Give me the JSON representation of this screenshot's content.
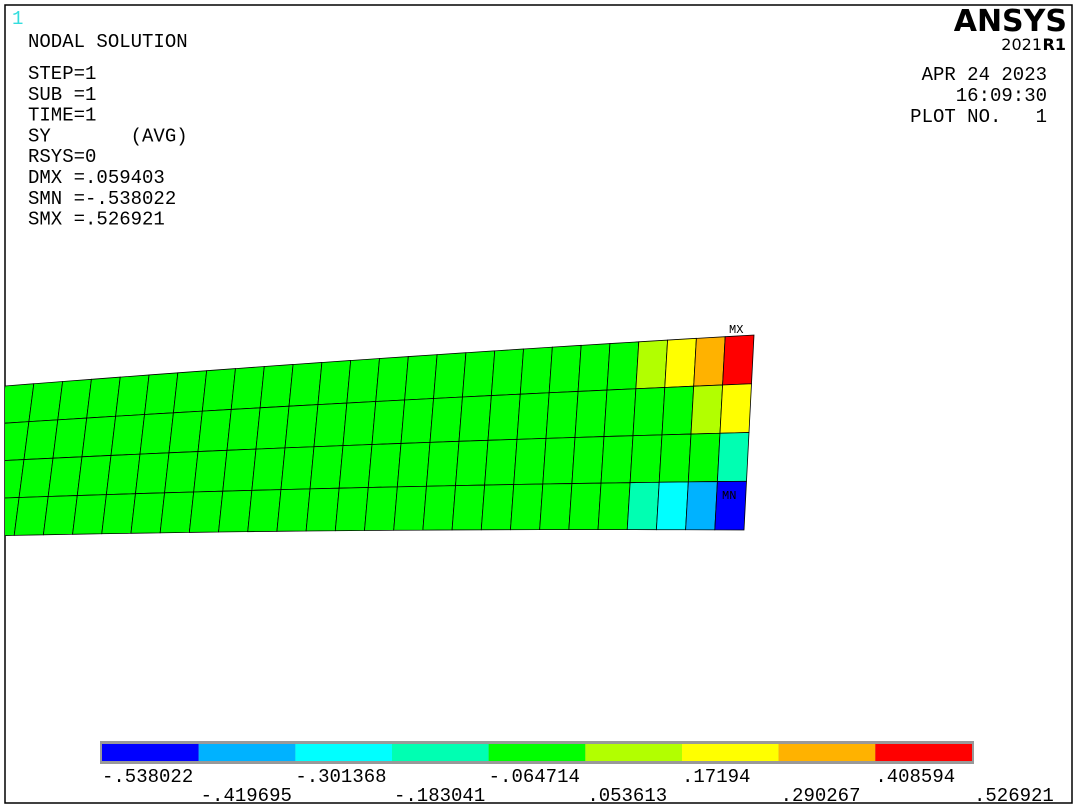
{
  "header": {
    "window_number": "1",
    "title": "NODAL SOLUTION",
    "brand": "ANSYS",
    "version": "2021",
    "release": "R1",
    "date": "APR 24 2023",
    "time": "16:09:30",
    "plot_number": "PLOT NO.   1"
  },
  "info": [
    "STEP=1",
    "SUB =1",
    "TIME=1",
    "SY       (AVG)",
    "RSYS=0",
    "DMX =.059403",
    "SMN =-.538022",
    "SMX =.526921"
  ],
  "markers": {
    "max": "MX",
    "min": "MN"
  },
  "legend": {
    "colors": [
      "#0000ff",
      "#00b2ff",
      "#00ffff",
      "#00ffb2",
      "#00ff00",
      "#b2ff00",
      "#ffff00",
      "#ffb200",
      "#ff0000"
    ],
    "labels": [
      "-.538022",
      "-.419695",
      "-.301368",
      "-.183041",
      "-.064714",
      ".053613",
      ".17194",
      ".290267",
      ".408594",
      ".526921"
    ]
  }
}
